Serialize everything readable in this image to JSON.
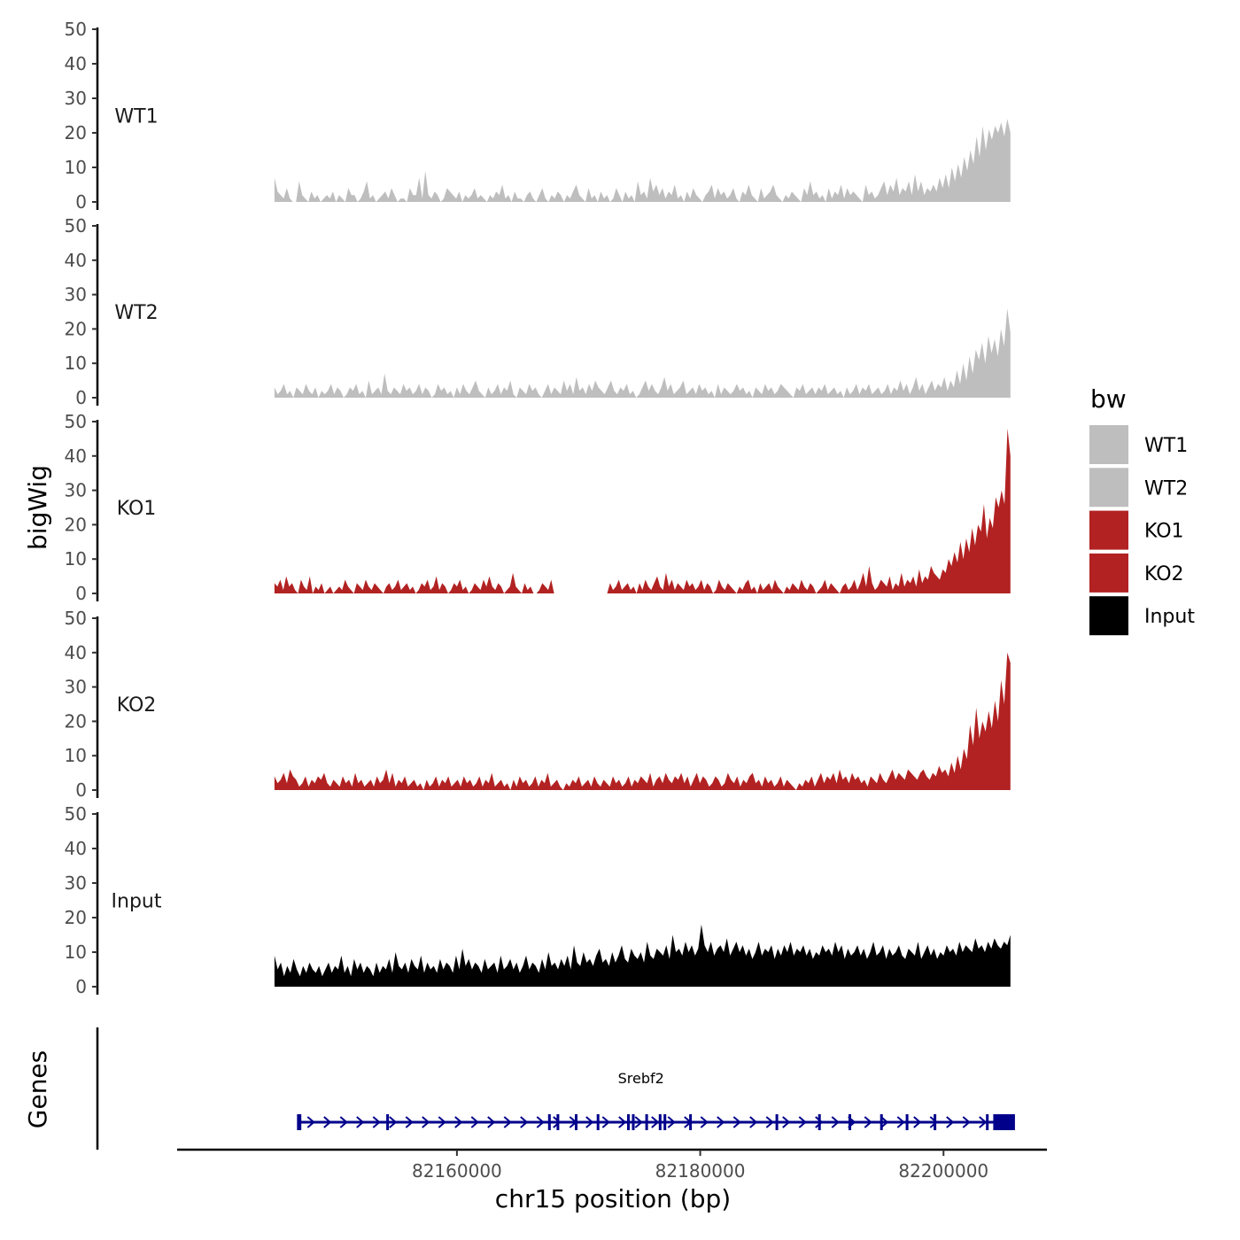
{
  "chart_data": {
    "type": "area",
    "ylabel": "bigWig",
    "xlabel": "chr15 position (bp)",
    "ylim": [
      0,
      50
    ],
    "yticks": [
      0,
      10,
      20,
      30,
      40,
      50
    ],
    "xlim": [
      82137000,
      82208500
    ],
    "xticks": [
      82160000,
      82180000,
      82200000
    ],
    "xtick_labels": [
      "82160000",
      "82180000",
      "82200000"
    ],
    "data_range": [
      82145000,
      82205500
    ],
    "tracks": [
      {
        "label": "WT1",
        "color": "#bebebe",
        "values": [
          7,
          3,
          2,
          1,
          4,
          1,
          0,
          0,
          6,
          2,
          1,
          0,
          3,
          1,
          2,
          0,
          1,
          2,
          1,
          3,
          0,
          2,
          1,
          0,
          4,
          2,
          2,
          0,
          1,
          3,
          6,
          1,
          2,
          0,
          1,
          2,
          3,
          1,
          4,
          2,
          0,
          1,
          1,
          0,
          4,
          2,
          2,
          7,
          1,
          9,
          2,
          1,
          3,
          2,
          0,
          1,
          4,
          3,
          2,
          1,
          3,
          0,
          2,
          1,
          2,
          4,
          1,
          2,
          1,
          0,
          2,
          1,
          3,
          2,
          5,
          1,
          2,
          0,
          3,
          1,
          1,
          0,
          2,
          3,
          1,
          0,
          2,
          4,
          1,
          0,
          2,
          1,
          3,
          2,
          0,
          2,
          1,
          3,
          5,
          2,
          1,
          0,
          4,
          1,
          2,
          0,
          3,
          1,
          2,
          0,
          1,
          4,
          2,
          0,
          3,
          1,
          2,
          0,
          6,
          2,
          3,
          1,
          7,
          3,
          5,
          2,
          4,
          1,
          3,
          2,
          5,
          1,
          2,
          0,
          3,
          1,
          4,
          2,
          1,
          0,
          2,
          3,
          5,
          1,
          4,
          2,
          3,
          1,
          2,
          4,
          1,
          0,
          3,
          2,
          5,
          2,
          1,
          0,
          4,
          1,
          2,
          3,
          5,
          2,
          1,
          0,
          2,
          1,
          3,
          2,
          1,
          0,
          4,
          2,
          6,
          2,
          3,
          1,
          2,
          0,
          4,
          1,
          3,
          2,
          5,
          1,
          4,
          2,
          3,
          2,
          1,
          0,
          5,
          2,
          3,
          1,
          2,
          4,
          6,
          2,
          5,
          3,
          7,
          2,
          4,
          3,
          6,
          2,
          8,
          3,
          6,
          2,
          4,
          3,
          5,
          3,
          7,
          4,
          8,
          4,
          10,
          6,
          11,
          7,
          13,
          9,
          15,
          11,
          19,
          13,
          22,
          15,
          21,
          18,
          22,
          20,
          23,
          19,
          24,
          20
        ]
      },
      {
        "label": "WT2",
        "color": "#bebebe",
        "values": [
          3,
          1,
          2,
          4,
          1,
          2,
          0,
          3,
          2,
          1,
          4,
          2,
          1,
          3,
          0,
          2,
          1,
          2,
          4,
          1,
          3,
          2,
          0,
          1,
          3,
          2,
          4,
          1,
          2,
          0,
          5,
          1,
          2,
          3,
          1,
          7,
          2,
          1,
          3,
          2,
          1,
          4,
          2,
          3,
          1,
          2,
          4,
          1,
          3,
          2,
          0,
          1,
          4,
          2,
          3,
          1,
          2,
          0,
          3,
          1,
          4,
          2,
          1,
          3,
          5,
          2,
          1,
          0,
          3,
          1,
          2,
          4,
          1,
          3,
          2,
          5,
          1,
          0,
          3,
          2,
          1,
          4,
          2,
          3,
          1,
          0,
          2,
          4,
          1,
          3,
          2,
          1,
          5,
          2,
          4,
          1,
          6,
          2,
          3,
          1,
          4,
          2,
          5,
          3,
          2,
          1,
          3,
          5,
          2,
          1,
          3,
          2,
          4,
          1,
          2,
          0,
          1,
          3,
          5,
          2,
          4,
          2,
          1,
          3,
          6,
          2,
          4,
          1,
          2,
          3,
          5,
          1,
          2,
          3,
          1,
          4,
          2,
          3,
          1,
          2,
          0,
          4,
          1,
          3,
          2,
          1,
          2,
          4,
          2,
          3,
          1,
          2,
          0,
          3,
          2,
          1,
          4,
          2,
          3,
          1,
          2,
          4,
          3,
          2,
          1,
          0,
          3,
          2,
          4,
          1,
          2,
          3,
          1,
          3,
          2,
          4,
          1,
          2,
          3,
          1,
          2,
          0,
          3,
          1,
          2,
          4,
          1,
          3,
          2,
          4,
          1,
          2,
          3,
          1,
          2,
          4,
          1,
          3,
          2,
          5,
          2,
          4,
          1,
          3,
          6,
          2,
          4,
          1,
          3,
          5,
          2,
          4,
          3,
          6,
          2,
          5,
          3,
          8,
          4,
          10,
          5,
          12,
          7,
          14,
          11,
          16,
          10,
          18,
          13,
          17,
          12,
          20,
          15,
          26,
          19
        ]
      },
      {
        "label": "KO1",
        "color": "#b22222",
        "values": [
          3,
          2,
          4,
          1,
          5,
          2,
          3,
          1,
          0,
          4,
          2,
          1,
          5,
          0,
          2,
          1,
          3,
          0,
          1,
          2,
          0,
          1,
          2,
          1,
          4,
          2,
          1,
          0,
          3,
          2,
          1,
          4,
          2,
          1,
          3,
          2,
          1,
          0,
          2,
          3,
          1,
          2,
          4,
          1,
          2,
          3,
          1,
          2,
          0,
          1,
          3,
          2,
          4,
          1,
          2,
          5,
          1,
          3,
          2,
          0,
          1,
          3,
          2,
          4,
          1,
          2,
          0,
          1,
          3,
          2,
          1,
          4,
          2,
          5,
          2,
          1,
          3,
          2,
          0,
          1,
          2,
          6,
          2,
          1,
          0,
          3,
          1,
          2,
          0,
          0,
          1,
          3,
          2,
          1,
          4,
          0,
          0,
          0,
          0,
          0,
          0,
          0,
          0,
          0,
          0,
          0,
          0,
          0,
          0,
          0,
          0,
          0,
          0,
          0,
          3,
          1,
          2,
          4,
          1,
          2,
          3,
          1,
          2,
          0,
          3,
          1,
          4,
          2,
          1,
          3,
          5,
          2,
          1,
          6,
          2,
          4,
          1,
          3,
          2,
          1,
          4,
          2,
          3,
          1,
          2,
          4,
          1,
          3,
          2,
          0,
          1,
          4,
          2,
          1,
          3,
          2,
          1,
          0,
          2,
          1,
          3,
          4,
          1,
          2,
          0,
          3,
          1,
          2,
          3,
          1,
          4,
          2,
          1,
          0,
          2,
          1,
          3,
          2,
          1,
          4,
          2,
          1,
          3,
          2,
          0,
          1,
          2,
          4,
          1,
          3,
          2,
          1,
          0,
          2,
          3,
          1,
          2,
          4,
          1,
          3,
          6,
          2,
          8,
          3,
          1,
          2,
          4,
          3,
          2,
          5,
          1,
          3,
          2,
          6,
          2,
          4,
          3,
          5,
          2,
          7,
          3,
          5,
          4,
          8,
          6,
          5,
          4,
          7,
          6,
          10,
          8,
          12,
          9,
          15,
          10,
          16,
          12,
          19,
          14,
          20,
          18,
          26,
          16,
          22,
          19,
          28,
          25,
          30,
          26,
          48,
          40
        ]
      },
      {
        "label": "KO2",
        "color": "#b22222",
        "values": [
          4,
          2,
          3,
          5,
          2,
          6,
          4,
          3,
          1,
          2,
          4,
          1,
          3,
          2,
          4,
          3,
          5,
          2,
          1,
          3,
          2,
          1,
          4,
          2,
          3,
          1,
          5,
          2,
          3,
          1,
          2,
          3,
          1,
          4,
          2,
          3,
          6,
          2,
          5,
          1,
          3,
          2,
          4,
          1,
          2,
          3,
          1,
          2,
          0,
          3,
          1,
          2,
          4,
          1,
          3,
          2,
          4,
          1,
          2,
          3,
          1,
          4,
          2,
          3,
          1,
          2,
          4,
          1,
          3,
          2,
          5,
          1,
          2,
          3,
          1,
          2,
          0,
          3,
          1,
          4,
          2,
          3,
          1,
          2,
          4,
          1,
          3,
          2,
          5,
          1,
          2,
          3,
          1,
          0,
          2,
          1,
          3,
          2,
          4,
          1,
          2,
          3,
          1,
          4,
          2,
          1,
          3,
          2,
          1,
          4,
          2,
          3,
          1,
          2,
          4,
          1,
          3,
          2,
          4,
          3,
          2,
          5,
          1,
          3,
          4,
          2,
          5,
          3,
          2,
          4,
          3,
          5,
          2,
          4,
          1,
          3,
          5,
          2,
          4,
          3,
          1,
          2,
          4,
          3,
          1,
          2,
          5,
          3,
          2,
          4,
          1,
          3,
          2,
          4,
          5,
          2,
          3,
          1,
          4,
          2,
          3,
          1,
          2,
          4,
          1,
          3,
          2,
          1,
          0,
          2,
          1,
          3,
          2,
          4,
          1,
          3,
          5,
          2,
          4,
          3,
          5,
          2,
          6,
          3,
          4,
          2,
          5,
          3,
          4,
          2,
          3,
          1,
          4,
          3,
          2,
          5,
          3,
          2,
          4,
          6,
          3,
          5,
          4,
          3,
          6,
          5,
          4,
          3,
          5,
          6,
          4,
          3,
          5,
          4,
          7,
          5,
          6,
          4,
          8,
          5,
          10,
          6,
          12,
          9,
          19,
          13,
          24,
          15,
          20,
          17,
          23,
          18,
          26,
          20,
          32,
          25,
          40,
          37
        ]
      },
      {
        "label": "Input",
        "color": "#000000",
        "values": [
          9,
          5,
          7,
          3,
          6,
          4,
          8,
          5,
          3,
          6,
          4,
          7,
          5,
          4,
          6,
          3,
          5,
          7,
          4,
          6,
          5,
          9,
          4,
          6,
          3,
          8,
          5,
          7,
          4,
          6,
          5,
          3,
          7,
          4,
          6,
          5,
          8,
          4,
          10,
          6,
          5,
          7,
          4,
          8,
          6,
          5,
          9,
          4,
          7,
          5,
          6,
          4,
          8,
          5,
          7,
          6,
          4,
          9,
          5,
          11,
          6,
          8,
          5,
          7,
          6,
          4,
          8,
          5,
          6,
          7,
          4,
          9,
          5,
          6,
          8,
          5,
          7,
          4,
          6,
          9,
          5,
          7,
          6,
          4,
          8,
          5,
          10,
          6,
          7,
          5,
          8,
          6,
          9,
          5,
          12,
          7,
          6,
          10,
          7,
          8,
          6,
          9,
          11,
          7,
          8,
          6,
          10,
          7,
          9,
          12,
          8,
          7,
          11,
          9,
          8,
          10,
          7,
          13,
          9,
          8,
          11,
          10,
          9,
          12,
          8,
          15,
          10,
          11,
          9,
          13,
          10,
          12,
          9,
          11,
          18,
          12,
          10,
          13,
          9,
          11,
          12,
          10,
          14,
          9,
          11,
          13,
          10,
          12,
          9,
          11,
          8,
          10,
          13,
          9,
          11,
          10,
          12,
          8,
          11,
          9,
          12,
          10,
          13,
          9,
          11,
          10,
          12,
          9,
          11,
          8,
          10,
          9,
          12,
          10,
          11,
          9,
          13,
          10,
          12,
          8,
          11,
          9,
          10,
          12,
          9,
          11,
          8,
          10,
          13,
          9,
          10,
          12,
          8,
          11,
          9,
          10,
          12,
          9,
          8,
          11,
          10,
          9,
          13,
          8,
          10,
          12,
          9,
          11,
          8,
          10,
          9,
          12,
          10,
          11,
          9,
          13,
          10,
          12,
          11,
          10,
          14,
          11,
          12,
          10,
          13,
          11,
          14,
          12,
          11,
          13,
          12,
          15
        ]
      }
    ],
    "legend": {
      "title": "bw",
      "entries": [
        {
          "label": "WT1",
          "color": "#bebebe"
        },
        {
          "label": "WT2",
          "color": "#bebebe"
        },
        {
          "label": "KO1",
          "color": "#b22222"
        },
        {
          "label": "KO2",
          "color": "#b22222"
        },
        {
          "label": "Input",
          "color": "#000000"
        }
      ]
    },
    "genes_track": {
      "title": "Genes",
      "gene_name": "Srebf2",
      "color": "#00008b",
      "start": 82147000,
      "end": 82205600,
      "exons": [
        82147100,
        82154300,
        82167600,
        82168300,
        82169800,
        82171600,
        82174100,
        82174500,
        82175600,
        82176700,
        82177100,
        82179200,
        82186300,
        82189800,
        82192300,
        82194900,
        82197000,
        82199300,
        82203600,
        82204200,
        82205000
      ]
    }
  }
}
